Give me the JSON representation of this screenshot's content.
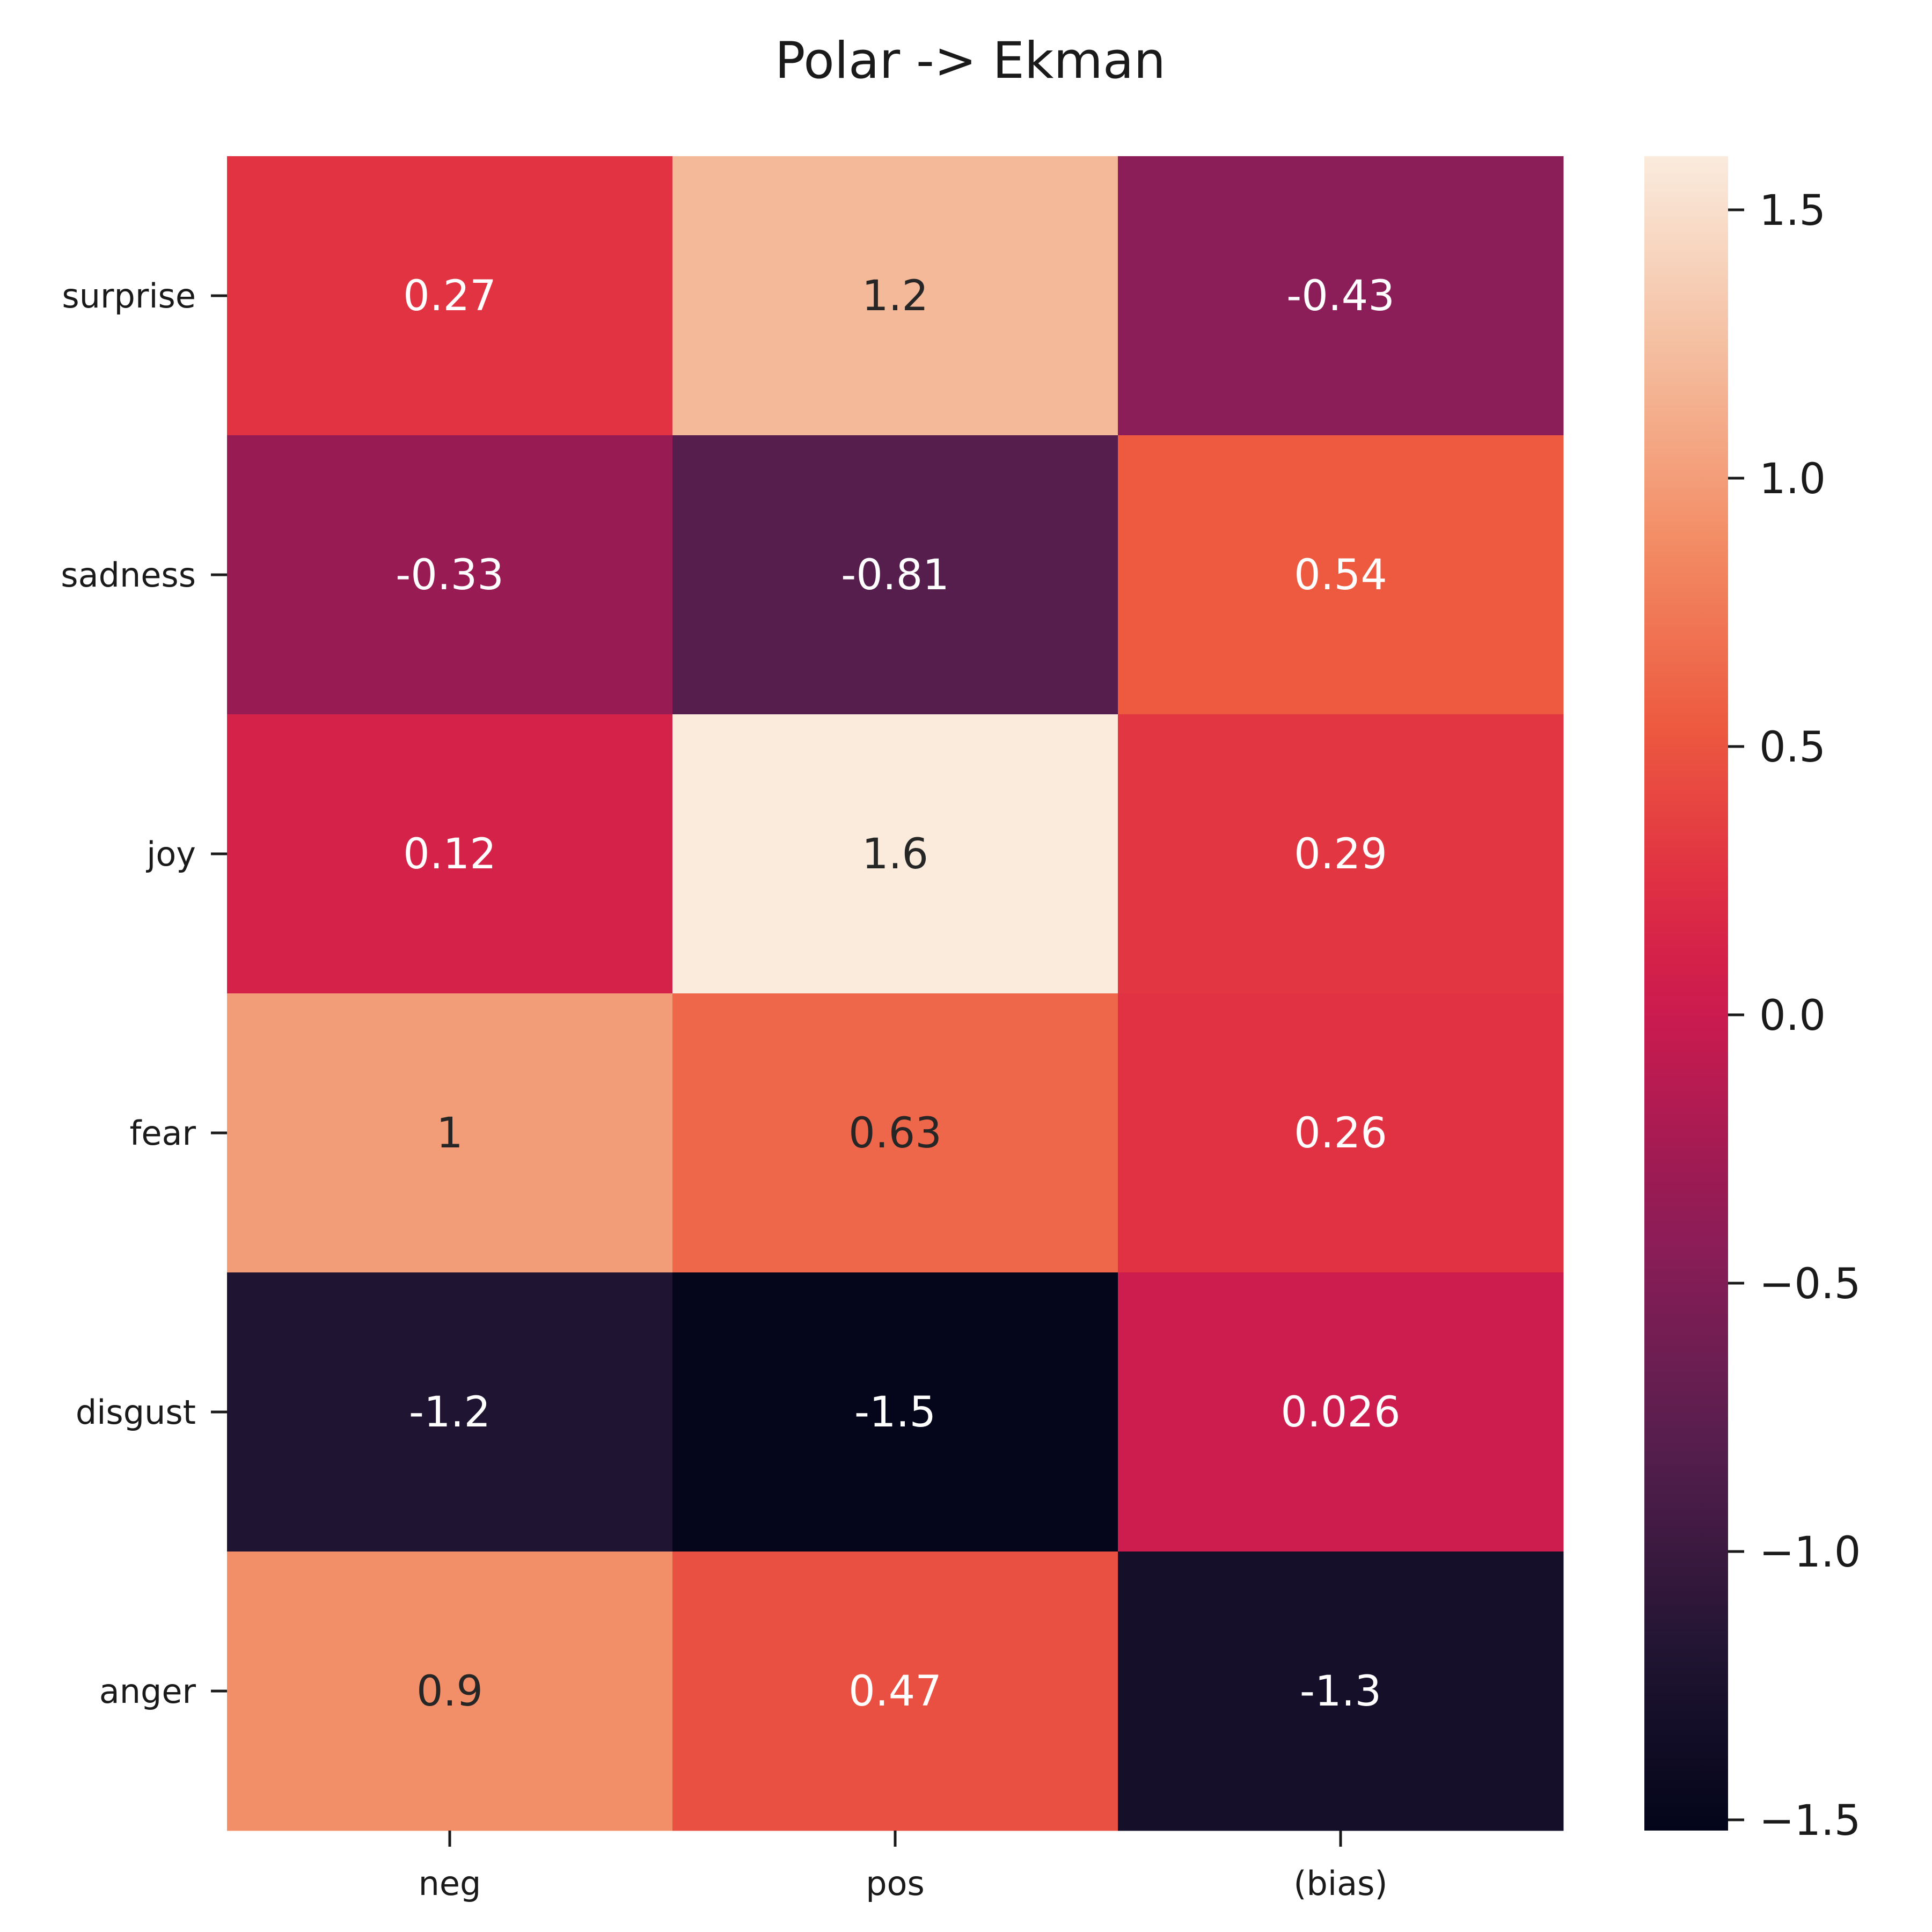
{
  "chart_data": {
    "type": "heatmap",
    "title": "Polar -> Ekman",
    "x_categories": [
      "neg",
      "pos",
      "(bias)"
    ],
    "y_categories": [
      "surprise",
      "sadness",
      "joy",
      "fear",
      "disgust",
      "anger"
    ],
    "values": [
      [
        0.27,
        1.2,
        -0.43
      ],
      [
        -0.33,
        -0.81,
        0.54
      ],
      [
        0.12,
        1.6,
        0.29
      ],
      [
        1.0,
        0.63,
        0.26
      ],
      [
        -1.2,
        -1.5,
        0.026
      ],
      [
        0.9,
        0.47,
        -1.3
      ]
    ],
    "labels": [
      [
        "0.27",
        "1.2",
        "-0.43"
      ],
      [
        "-0.33",
        "-0.81",
        "0.54"
      ],
      [
        "0.12",
        "1.6",
        "0.29"
      ],
      [
        "1",
        "0.63",
        "0.26"
      ],
      [
        "-1.2",
        "-1.5",
        "0.026"
      ],
      [
        "0.9",
        "0.47",
        "-1.3"
      ]
    ],
    "colorbar": {
      "range": [
        -1.52,
        1.6
      ],
      "ticks": [
        1.5,
        1.0,
        0.5,
        0.0,
        -0.5,
        -1.0,
        -1.5
      ],
      "tick_labels": [
        "1.5",
        "1.0",
        "0.5",
        "0.0",
        "−0.5",
        "−1.0",
        "−1.5"
      ]
    },
    "colormap": "rocket",
    "colormap_stops": [
      {
        "v": -1.52,
        "c": "#03051a"
      },
      {
        "v": -1.2,
        "c": "#1f1431"
      },
      {
        "v": -0.81,
        "c": "#551e4d"
      },
      {
        "v": -0.43,
        "c": "#8b1d58"
      },
      {
        "v": -0.33,
        "c": "#981b54"
      },
      {
        "v": 0.0,
        "c": "#cb1b4f"
      },
      {
        "v": 0.12,
        "c": "#d52249"
      },
      {
        "v": 0.27,
        "c": "#e13342"
      },
      {
        "v": 0.54,
        "c": "#ed5a40"
      },
      {
        "v": 0.9,
        "c": "#f38f68"
      },
      {
        "v": 1.2,
        "c": "#f4b999"
      },
      {
        "v": 1.6,
        "c": "#faebdd"
      }
    ],
    "grid": false
  }
}
